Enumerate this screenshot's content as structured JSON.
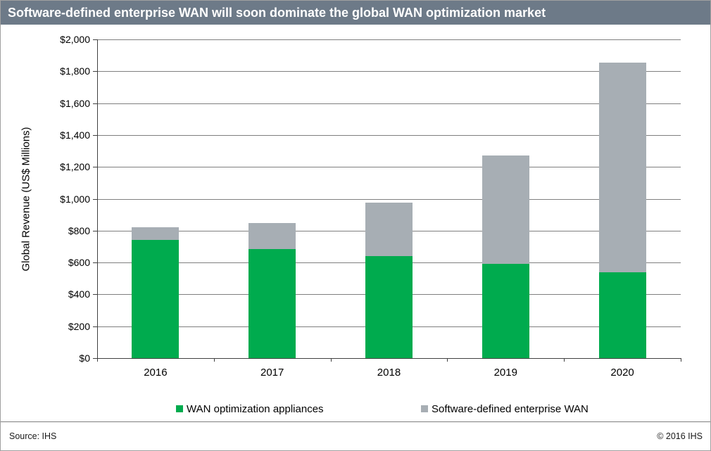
{
  "title": "Software-defined enterprise WAN will soon dominate the global WAN optimization market",
  "footer": {
    "source": "Source: IHS",
    "copyright": "© 2016 IHS"
  },
  "theme": {
    "header_bg": "#6d7a88",
    "header_text": "#ffffff",
    "grid_color": "#7f7f7f",
    "axis_color": "#404040",
    "canvas_border": "#a0a0a0",
    "separator_color": "#7f7f7f"
  },
  "chart_data": {
    "type": "bar",
    "stacked": true,
    "title": "Software-defined enterprise WAN will soon dominate the global WAN optimization market",
    "categories": [
      "2016",
      "2017",
      "2018",
      "2019",
      "2020"
    ],
    "series": [
      {
        "name": "WAN optimization appliances",
        "color": "#00ab4e",
        "values": [
          740,
          685,
          640,
          590,
          540
        ]
      },
      {
        "name": "Software-defined enterprise WAN",
        "color": "#a7aeb4",
        "values": [
          80,
          165,
          335,
          680,
          1315
        ]
      }
    ],
    "totals": [
      820,
      850,
      975,
      1270,
      1855
    ],
    "xlabel": "",
    "ylabel": "Global Revenue (US$ Millions)",
    "ylim": [
      0,
      2000
    ],
    "ytick_step": 200,
    "ytick_prefix": "$",
    "grid": true,
    "legend_position": "bottom"
  }
}
